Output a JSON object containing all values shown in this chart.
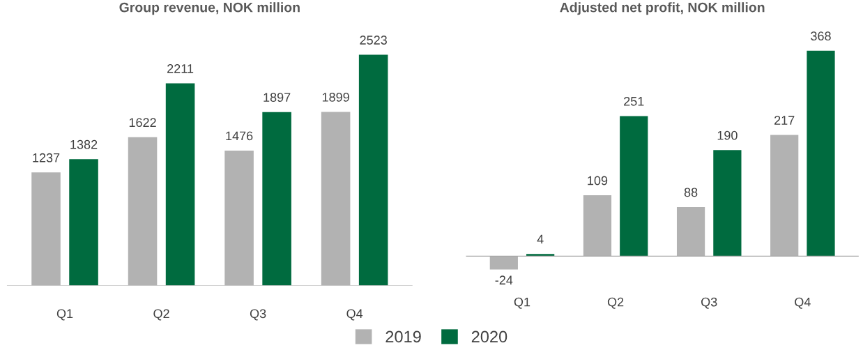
{
  "chart_data": [
    {
      "type": "bar",
      "title": "Group revenue, NOK million",
      "categories": [
        "Q1",
        "Q2",
        "Q3",
        "Q4"
      ],
      "series": [
        {
          "name": "2019",
          "color": "#b2b2b2",
          "values": [
            1237,
            1622,
            1476,
            1899
          ]
        },
        {
          "name": "2020",
          "color": "#006b3f",
          "values": [
            1382,
            2211,
            1897,
            2523
          ]
        }
      ],
      "data_labels": true,
      "legend": "bottom",
      "grid": false
    },
    {
      "type": "bar",
      "title": "Adjusted net profit, NOK million",
      "categories": [
        "Q1",
        "Q2",
        "Q3",
        "Q4"
      ],
      "series": [
        {
          "name": "2019",
          "color": "#b2b2b2",
          "values": [
            -24,
            109,
            88,
            217
          ]
        },
        {
          "name": "2020",
          "color": "#006b3f",
          "values": [
            4,
            251,
            190,
            368
          ]
        }
      ],
      "data_labels": true,
      "legend": "bottom",
      "grid": false
    }
  ]
}
